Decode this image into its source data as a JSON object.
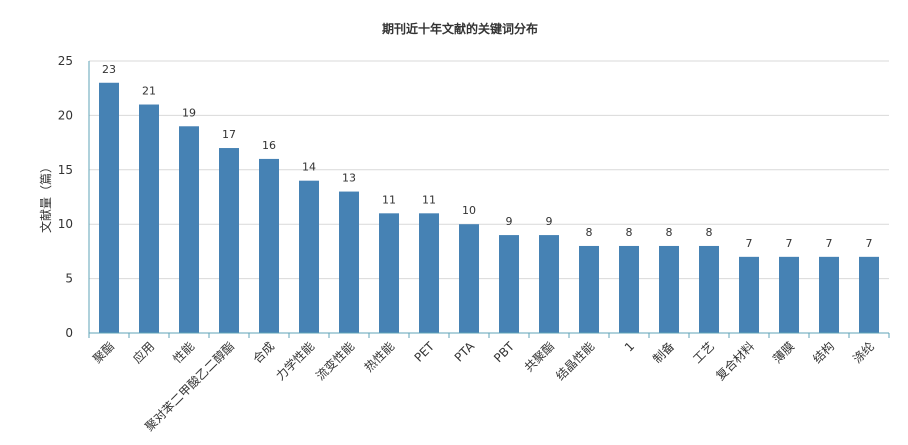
{
  "chart_data": {
    "type": "bar",
    "title": "期刊近十年文献的关键词分布",
    "xlabel": "",
    "ylabel": "文献量（篇）",
    "ylim": [
      0,
      25
    ],
    "yticks": [
      0,
      5,
      10,
      15,
      20,
      25
    ],
    "grid": true,
    "legend": "none",
    "categories": [
      "聚酯",
      "应用",
      "性能",
      "聚对苯二甲酸乙二醇酯",
      "合成",
      "力学性能",
      "流变性能",
      "热性能",
      "PET",
      "PTA",
      "PBT",
      "共聚酯",
      "结晶性能",
      "1",
      "制备",
      "工艺",
      "复合材料",
      "薄膜",
      "结构",
      "涤纶"
    ],
    "values": [
      23,
      21,
      19,
      17,
      16,
      14,
      13,
      11,
      11,
      10,
      9,
      9,
      8,
      8,
      8,
      8,
      7,
      7,
      7,
      7
    ]
  },
  "colors": {
    "bar": "#4682b4",
    "axis": "#5fa3b7",
    "grid": "#d9d9d9",
    "text": "#333333"
  }
}
